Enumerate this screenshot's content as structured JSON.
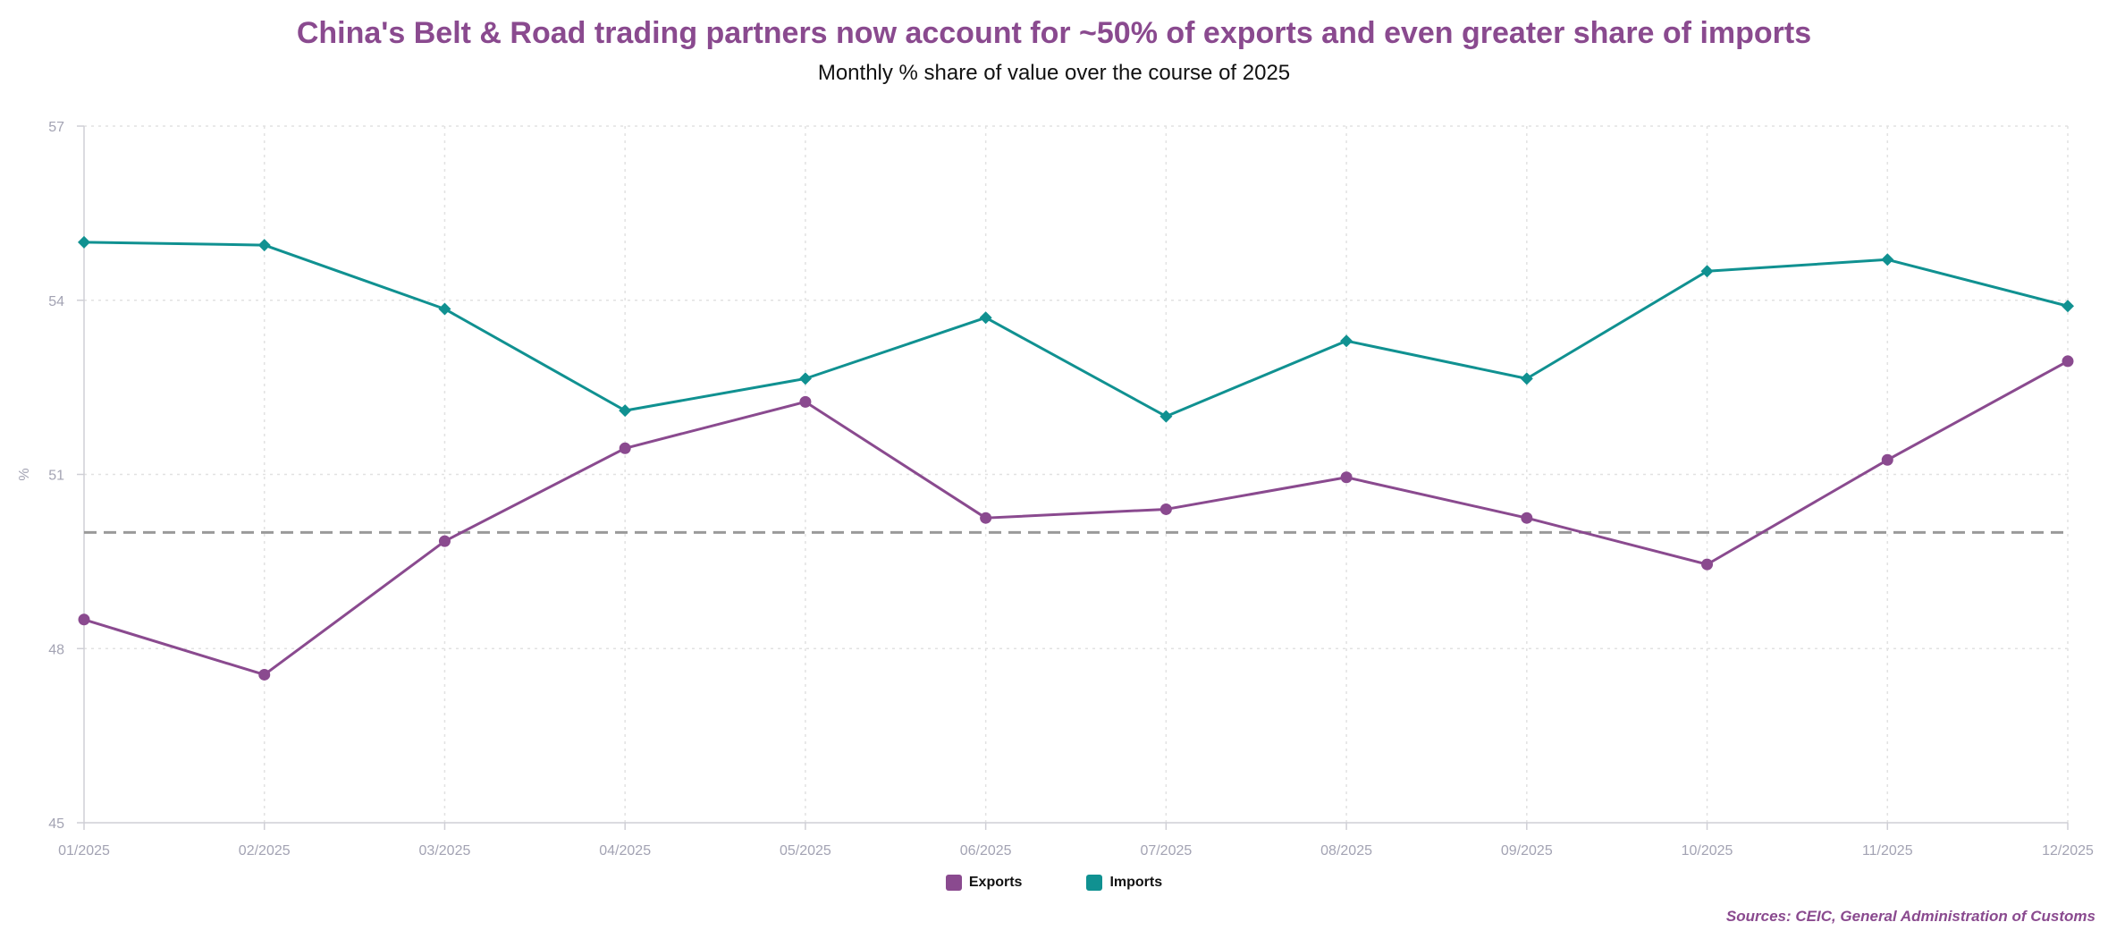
{
  "colors": {
    "exports": "#8a4a8f",
    "imports": "#109191",
    "reference": "#9a9a9a",
    "grid": "#e2e2e2",
    "axis_text": "#a3a3b3"
  },
  "chart_data": {
    "type": "line",
    "title": "China's Belt & Road trading partners now account for ~50% of exports and even greater share of imports",
    "subtitle": "Monthly % share of value over the course of 2025",
    "ylabel": "%",
    "xlabel": "",
    "categories": [
      "01/2025",
      "02/2025",
      "03/2025",
      "04/2025",
      "05/2025",
      "06/2025",
      "07/2025",
      "08/2025",
      "09/2025",
      "10/2025",
      "11/2025",
      "12/2025"
    ],
    "ylim": [
      45,
      57
    ],
    "yticks": [
      "45",
      "48",
      "51",
      "54",
      "57"
    ],
    "grid": true,
    "reference_line": 50,
    "legend_position": "bottom-center",
    "series": [
      {
        "name": "Exports",
        "marker": "circle",
        "values": [
          48.5,
          47.55,
          49.85,
          51.45,
          52.25,
          50.25,
          50.4,
          50.95,
          50.25,
          49.45,
          51.25,
          52.95
        ]
      },
      {
        "name": "Imports",
        "marker": "diamond",
        "values": [
          55.0,
          54.95,
          53.85,
          52.1,
          52.65,
          53.7,
          52.0,
          53.3,
          52.65,
          54.5,
          54.7,
          53.9
        ]
      }
    ]
  },
  "source": "Sources: CEIC, General Administration of Customs"
}
